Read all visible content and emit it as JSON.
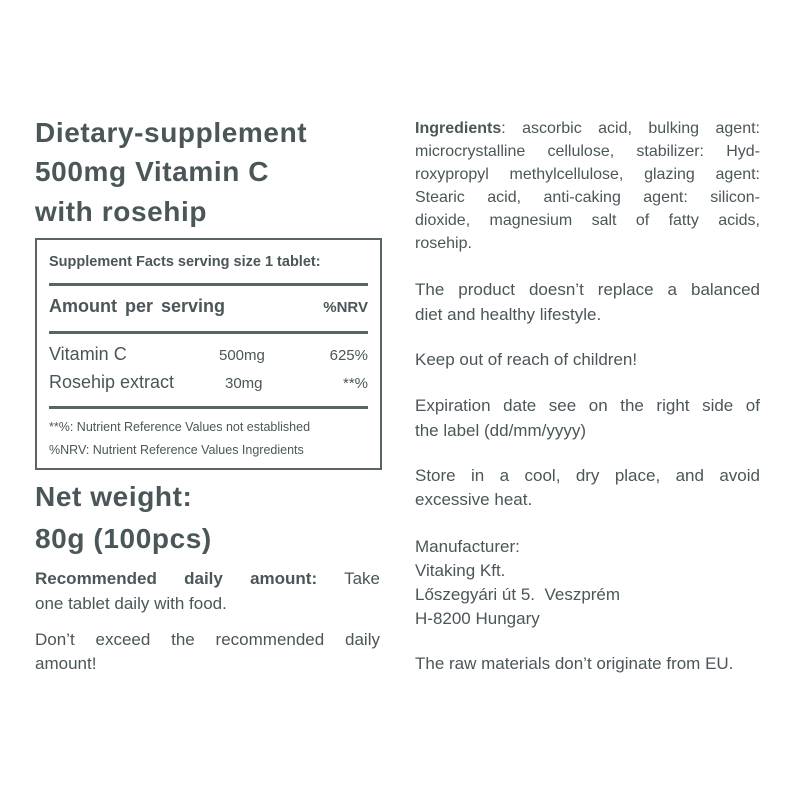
{
  "title_lines": [
    "Dietary-supplement",
    "500mg Vitamin C",
    "with rosehip"
  ],
  "facts": {
    "heading": "Supplement Facts serving size 1 tablet:",
    "amount_label": "Amount per serving",
    "nrv_label": "%NRV",
    "rows": [
      {
        "name": "Vitamin C",
        "amount": "500mg",
        "nrv": "625%"
      },
      {
        "name": "Rosehip extract",
        "amount": "30mg",
        "nrv": "**%"
      }
    ],
    "notes": [
      "**%: Nutrient Reference Values not established",
      "%NRV: Nutrient Reference Values Ingredients"
    ]
  },
  "net_weight": [
    "Net weight:",
    "80g (100pcs)"
  ],
  "recommended": {
    "label": "Recommended daily amount:",
    "line1_rest": "Take",
    "line2": "one tablet daily with food."
  },
  "dont_exceed": [
    "Don’t exceed the recommended daily",
    "amount!"
  ],
  "ingredients": {
    "label": "Ingredients",
    "line1_rest": ": ascorbic acid, bulking agent:",
    "lines": [
      "microcrystalline cellulose, stabilizer: Hyd-",
      "roxypropyl methylcellulose, glazing agent:",
      "Stearic acid, anti-caking agent: silicon-",
      "dioxide, magnesium salt of fatty acids,",
      "rosehip."
    ]
  },
  "balanced": [
    "The product doesn’t replace a balanced",
    "diet and healthy lifestyle."
  ],
  "children": "Keep out of reach of children!",
  "expiration": [
    "Expiration date see on the right side of",
    "the label (dd/mm/yyyy)"
  ],
  "store": [
    "Store in a cool, dry place, and avoid",
    "excessive heat."
  ],
  "manufacturer": [
    "Manufacturer:",
    "Vitaking Kft.",
    "Lőszegyári út 5.  Veszprém",
    "H-8200 Hungary"
  ],
  "origin": "The raw materials don’t originate from EU."
}
